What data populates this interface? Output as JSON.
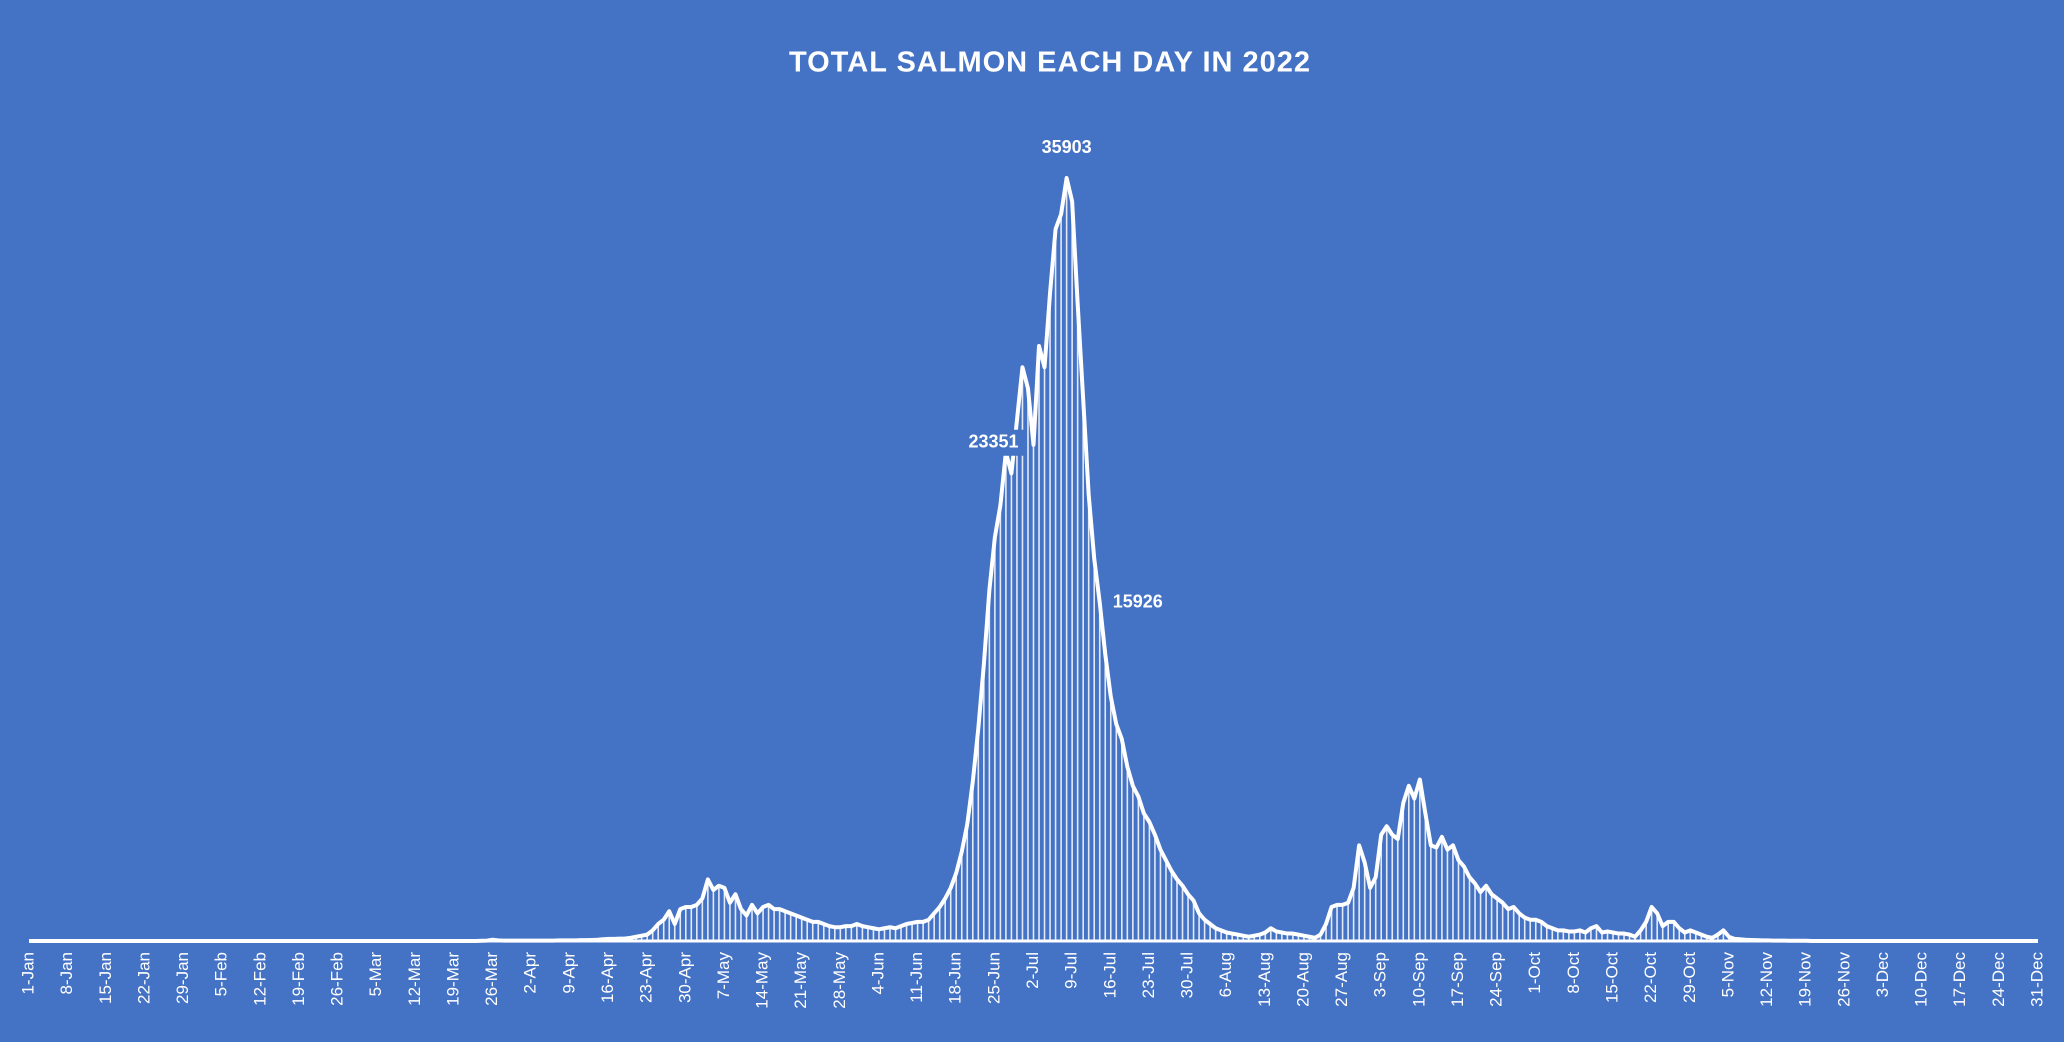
{
  "chart_data": {
    "type": "line",
    "title": "TOTAL SALMON EACH DAY IN 2022",
    "color": "#ffffff",
    "background": "#4472c4",
    "drop_lines": true,
    "label_points": [
      182,
      188,
      194
    ],
    "categories": [
      "1-Jan",
      null,
      null,
      null,
      null,
      null,
      null,
      "8-Jan",
      null,
      null,
      null,
      null,
      null,
      null,
      "15-Jan",
      null,
      null,
      null,
      null,
      null,
      null,
      "22-Jan",
      null,
      null,
      null,
      null,
      null,
      null,
      "29-Jan",
      null,
      null,
      null,
      null,
      null,
      null,
      "5-Feb",
      null,
      null,
      null,
      null,
      null,
      null,
      "12-Feb",
      null,
      null,
      null,
      null,
      null,
      null,
      "19-Feb",
      null,
      null,
      null,
      null,
      null,
      null,
      "26-Feb",
      null,
      null,
      null,
      null,
      null,
      null,
      "5-Mar",
      null,
      null,
      null,
      null,
      null,
      null,
      "12-Mar",
      null,
      null,
      null,
      null,
      null,
      null,
      "19-Mar",
      null,
      null,
      null,
      null,
      null,
      null,
      "26-Mar",
      null,
      null,
      null,
      null,
      null,
      null,
      "2-Apr",
      null,
      null,
      null,
      null,
      null,
      null,
      "9-Apr",
      null,
      null,
      null,
      null,
      null,
      null,
      "16-Apr",
      null,
      null,
      null,
      null,
      null,
      null,
      "23-Apr",
      null,
      null,
      null,
      null,
      null,
      null,
      "30-Apr",
      null,
      null,
      null,
      null,
      null,
      null,
      "7-May",
      null,
      null,
      null,
      null,
      null,
      null,
      "14-May",
      null,
      null,
      null,
      null,
      null,
      null,
      "21-May",
      null,
      null,
      null,
      null,
      null,
      null,
      "28-May",
      null,
      null,
      null,
      null,
      null,
      null,
      "4-Jun",
      null,
      null,
      null,
      null,
      null,
      null,
      "11-Jun",
      null,
      null,
      null,
      null,
      null,
      null,
      "18-Jun",
      null,
      null,
      null,
      null,
      null,
      null,
      "25-Jun",
      null,
      null,
      null,
      null,
      null,
      null,
      "2-Jul",
      null,
      null,
      null,
      null,
      null,
      null,
      "9-Jul",
      null,
      null,
      null,
      null,
      null,
      null,
      "16-Jul",
      null,
      null,
      null,
      null,
      null,
      null,
      "23-Jul",
      null,
      null,
      null,
      null,
      null,
      null,
      "30-Jul",
      null,
      null,
      null,
      null,
      null,
      null,
      "6-Aug",
      null,
      null,
      null,
      null,
      null,
      null,
      "13-Aug",
      null,
      null,
      null,
      null,
      null,
      null,
      "20-Aug",
      null,
      null,
      null,
      null,
      null,
      null,
      "27-Aug",
      null,
      null,
      null,
      null,
      null,
      null,
      "3-Sep",
      null,
      null,
      null,
      null,
      null,
      null,
      "10-Sep",
      null,
      null,
      null,
      null,
      null,
      null,
      "17-Sep",
      null,
      null,
      null,
      null,
      null,
      null,
      "24-Sep",
      null,
      null,
      null,
      null,
      null,
      null,
      "1-Oct",
      null,
      null,
      null,
      null,
      null,
      null,
      "8-Oct",
      null,
      null,
      null,
      null,
      null,
      null,
      "15-Oct",
      null,
      null,
      null,
      null,
      null,
      null,
      "22-Oct",
      null,
      null,
      null,
      null,
      null,
      null,
      "29-Oct",
      null,
      null,
      null,
      null,
      null,
      null,
      "5-Nov",
      null,
      null,
      null,
      null,
      null,
      null,
      "12-Nov",
      null,
      null,
      null,
      null,
      null,
      null,
      "19-Nov",
      null,
      null,
      null,
      null,
      null,
      null,
      "26-Nov",
      null,
      null,
      null,
      null,
      null,
      null,
      "3-Dec",
      null,
      null,
      null,
      null,
      null,
      null,
      "10-Dec",
      null,
      null,
      null,
      null,
      null,
      null,
      "17-Dec",
      null,
      null,
      null,
      null,
      null,
      null,
      "24-Dec",
      null,
      null,
      null,
      null,
      null,
      null,
      "31-Dec"
    ],
    "values": [
      0,
      0,
      0,
      0,
      0,
      0,
      0,
      0,
      0,
      0,
      0,
      0,
      0,
      0,
      0,
      0,
      0,
      0,
      0,
      0,
      0,
      0,
      0,
      0,
      0,
      0,
      0,
      0,
      0,
      0,
      0,
      0,
      0,
      0,
      0,
      0,
      0,
      0,
      0,
      0,
      0,
      0,
      0,
      0,
      0,
      0,
      0,
      0,
      0,
      0,
      0,
      0,
      0,
      0,
      0,
      0,
      0,
      0,
      0,
      0,
      0,
      0,
      0,
      0,
      0,
      0,
      0,
      0,
      0,
      0,
      0,
      0,
      0,
      0,
      0,
      0,
      0,
      0,
      0,
      0,
      0,
      0,
      10,
      20,
      60,
      30,
      20,
      20,
      20,
      20,
      20,
      20,
      20,
      20,
      20,
      20,
      30,
      30,
      30,
      30,
      40,
      40,
      50,
      60,
      80,
      100,
      100,
      110,
      120,
      150,
      200,
      250,
      300,
      500,
      800,
      1000,
      1400,
      800,
      1500,
      1600,
      1600,
      1700,
      2000,
      2900,
      2400,
      2600,
      2500,
      1800,
      2200,
      1500,
      1200,
      1700,
      1300,
      1600,
      1700,
      1500,
      1500,
      1400,
      1300,
      1200,
      1100,
      1000,
      900,
      900,
      800,
      700,
      650,
      650,
      700,
      700,
      800,
      700,
      650,
      600,
      550,
      600,
      650,
      600,
      700,
      800,
      850,
      900,
      900,
      1000,
      1300,
      1600,
      2000,
      2500,
      3200,
      4200,
      5500,
      7500,
      10000,
      13000,
      16500,
      19000,
      20500,
      23000,
      22000,
      24500,
      27000,
      26000,
      23351,
      28000,
      27000,
      30500,
      33500,
      34200,
      35903,
      34800,
      30000,
      25500,
      21000,
      18000,
      15926,
      13500,
      11500,
      10200,
      9500,
      8200,
      7300,
      6800,
      6000,
      5600,
      5000,
      4300,
      3800,
      3300,
      2900,
      2600,
      2200,
      1900,
      1300,
      1000,
      800,
      600,
      500,
      400,
      350,
      300,
      250,
      200,
      250,
      300,
      400,
      600,
      450,
      400,
      350,
      350,
      300,
      250,
      200,
      150,
      300,
      800,
      1600,
      1700,
      1700,
      1800,
      2500,
      4500,
      3700,
      2500,
      3000,
      5000,
      5400,
      5000,
      4800,
      6500,
      7300,
      6700,
      7600,
      6000,
      4500,
      4400,
      4900,
      4300,
      4500,
      3800,
      3500,
      3000,
      2700,
      2300,
      2600,
      2200,
      2000,
      1800,
      1500,
      1600,
      1300,
      1100,
      1000,
      1000,
      900,
      700,
      600,
      500,
      500,
      450,
      450,
      500,
      400,
      600,
      700,
      400,
      450,
      400,
      350,
      350,
      300,
      200,
      500,
      900,
      1600,
      1300,
      700,
      900,
      900,
      600,
      400,
      500,
      400,
      300,
      200,
      150,
      300,
      500,
      200,
      100,
      80,
      60,
      50,
      40,
      30,
      30,
      20,
      20,
      20,
      10,
      10,
      10,
      10,
      0,
      0,
      0,
      0,
      0,
      0,
      0,
      0,
      0,
      0,
      0,
      0,
      0,
      0,
      0,
      0,
      0,
      0,
      0,
      0,
      0,
      0,
      0,
      0,
      0,
      0,
      0,
      0,
      0,
      0,
      0,
      0,
      0,
      0,
      0,
      0,
      0,
      0,
      0,
      0,
      0,
      0
    ]
  }
}
